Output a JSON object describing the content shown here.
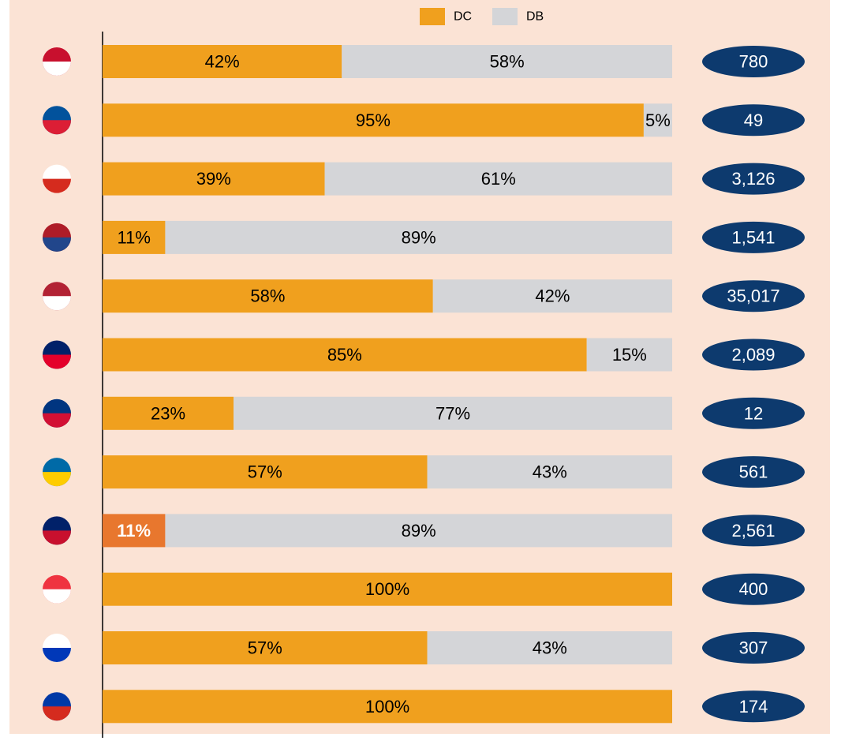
{
  "chart_data": {
    "type": "stacked_bar_horizontal",
    "categories": [
      null,
      null,
      null,
      null,
      null,
      null,
      null,
      null,
      null,
      null,
      null,
      null
    ],
    "xlim": [
      0,
      100
    ],
    "legend": "top",
    "series": [
      {
        "name": "DC",
        "color": "#f0a01e",
        "values": [
          42,
          95,
          39,
          11,
          58,
          85,
          23,
          57,
          11,
          100,
          57,
          100
        ],
        "value_labels": [
          "42%",
          "95%",
          "39%",
          "11%",
          "58%",
          "85%",
          "23%",
          "57%",
          "11%",
          "100%",
          "57%",
          "100%"
        ]
      },
      {
        "name": "DB",
        "color": "#d4d5d8",
        "values": [
          58,
          5,
          61,
          89,
          42,
          15,
          77,
          43,
          89,
          0,
          43,
          0
        ],
        "value_labels": [
          "58%",
          "5%",
          "61%",
          "89%",
          "42%",
          "15%",
          "77%",
          "43%",
          "89%",
          null,
          "43%",
          null
        ]
      }
    ],
    "highlight": {
      "series": 0,
      "index": 8,
      "color": "#e8772e"
    },
    "totals": {
      "color": "#0d3a6e",
      "values": [
        780,
        49,
        3126,
        1541,
        35017,
        2089,
        12,
        561,
        2561,
        400,
        307,
        174
      ],
      "value_labels": [
        "780",
        "49",
        "3,126",
        "1,541",
        "35,017",
        "2,089",
        "12",
        "561",
        "2,561",
        "400",
        "307",
        "174"
      ]
    }
  }
}
